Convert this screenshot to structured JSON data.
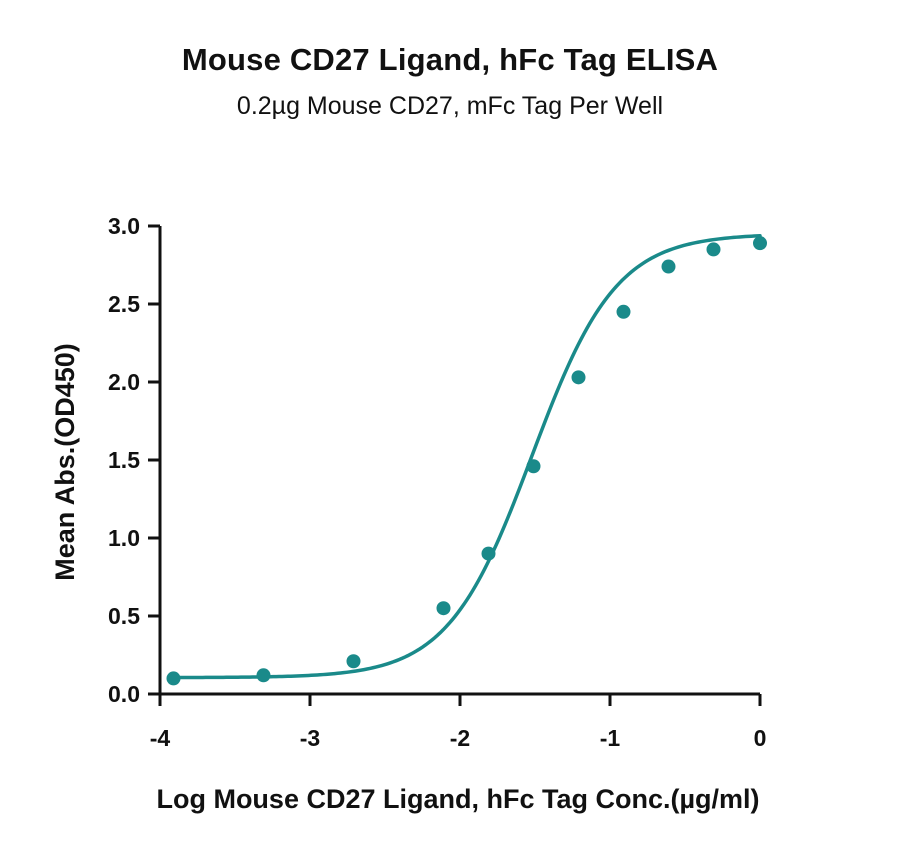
{
  "chart_data": {
    "type": "scatter",
    "title": "Mouse CD27 Ligand, hFc Tag ELISA",
    "subtitle": "0.2µg Mouse CD27, mFc Tag Per Well",
    "xlabel": "Log Mouse CD27 Ligand, hFc Tag Conc.(µg/ml)",
    "ylabel": "Mean Abs.(OD450)",
    "xlim": [
      -4,
      0
    ],
    "ylim": [
      0,
      3.0
    ],
    "x_ticks": [
      -4,
      -3,
      -2,
      -1,
      0
    ],
    "x_tick_labels": [
      "-4",
      "-3",
      "-2",
      "-1",
      "0"
    ],
    "y_ticks": [
      0,
      0.5,
      1.0,
      1.5,
      2.0,
      2.5,
      3.0
    ],
    "y_tick_labels": [
      "0.0",
      "0.5",
      "1.0",
      "1.5",
      "2.0",
      "2.5",
      "3.0"
    ],
    "grid": false,
    "legend": "none",
    "color": "#1a8a8a",
    "points": {
      "x": [
        -3.91,
        -3.31,
        -2.71,
        -2.11,
        -1.81,
        -1.51,
        -1.21,
        -0.91,
        -0.61,
        -0.31,
        0.0
      ],
      "y": [
        0.1,
        0.12,
        0.21,
        0.55,
        0.9,
        1.46,
        2.03,
        2.45,
        2.74,
        2.85,
        2.89
      ]
    },
    "fit": {
      "model": "4PL",
      "bottom": 0.105,
      "top": 2.95,
      "log_ec50": -1.52,
      "hill_slope": 1.55
    }
  }
}
